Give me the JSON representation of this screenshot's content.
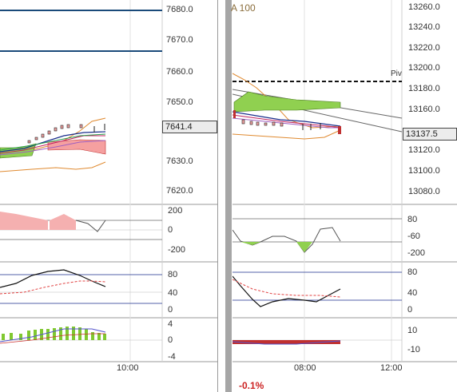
{
  "left_chart": {
    "price_axis": [
      "7680.0",
      "7670.0",
      "7660.0",
      "7650.0",
      "7630.0",
      "7620.0"
    ],
    "current_price": "7641.4",
    "osc1_axis": [
      "200",
      "0",
      "-200"
    ],
    "osc2_axis": [
      "80",
      "40",
      "0"
    ],
    "osc3_axis": [
      "4",
      "0",
      "-4"
    ],
    "time_axis": [
      "10:00"
    ]
  },
  "right_chart": {
    "top_label": "A 100",
    "price_axis": [
      "13260.0",
      "13240.0",
      "13220.0",
      "13200.0",
      "13180.0",
      "13160.0",
      "13120.0",
      "13100.0",
      "13080.0"
    ],
    "current_price": "13137.5",
    "pivot_label": "Piv",
    "osc1_axis": [
      "80",
      "-60",
      "-200"
    ],
    "osc2_axis": [
      "80",
      "40",
      "0"
    ],
    "osc3_axis": [
      "10",
      "-10"
    ],
    "time_axis": [
      "08:00",
      "12:00"
    ],
    "change_pct": "-0.1%"
  },
  "colors": {
    "up_candle": "#f0a0a0",
    "down_candle": "#c03030",
    "cloud_green": "#90d050",
    "cloud_red": "#f5a0a0",
    "pivot_line": "#111111",
    "level_line": "#1a4a7a",
    "accent_negative": "#cc2222"
  }
}
